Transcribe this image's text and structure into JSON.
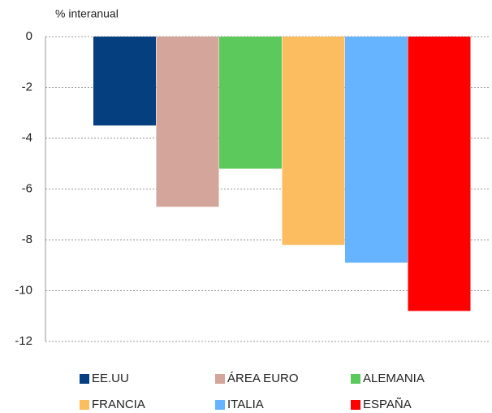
{
  "chart_data": {
    "type": "bar",
    "y_label": "% interanual",
    "categories": [
      "EE.UU",
      "ÁREA EURO",
      "ALEMANIA",
      "FRANCIA",
      "ITALIA",
      "ESPAÑA"
    ],
    "values": [
      -3.5,
      -6.7,
      -5.2,
      -8.2,
      -8.9,
      -10.8
    ],
    "colors": [
      "#063f7f",
      "#d4a59a",
      "#5cc95c",
      "#fbbd5f",
      "#66b3ff",
      "#ff0000"
    ],
    "ylim": [
      -12,
      0
    ],
    "yticks": [
      0,
      -2,
      -4,
      -6,
      -8,
      -10,
      -12
    ],
    "grid": true,
    "legend": "bottom"
  }
}
